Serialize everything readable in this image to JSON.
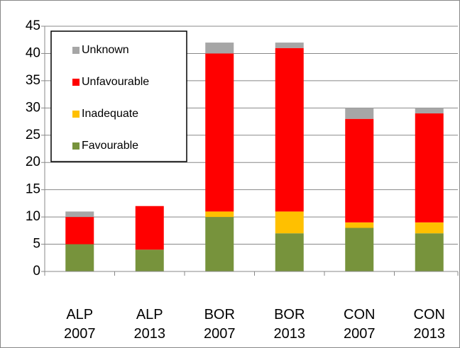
{
  "chart_data": {
    "type": "stacked_bar",
    "categories": [
      "ALP 2007",
      "ALP 2013",
      "BOR 2007",
      "BOR 2013",
      "CON 2007",
      "CON 2013"
    ],
    "series": [
      {
        "name": "Favourable",
        "color": "#77933c",
        "values": [
          5,
          4,
          10,
          7,
          8,
          7
        ]
      },
      {
        "name": "Inadequate",
        "color": "#ffc000",
        "values": [
          0,
          0,
          1,
          4,
          1,
          2
        ]
      },
      {
        "name": "Unfavourable",
        "color": "#ff0000",
        "values": [
          5,
          8,
          29,
          30,
          19,
          20
        ]
      },
      {
        "name": "Unknown",
        "color": "#a6a6a6",
        "values": [
          1,
          0,
          2,
          1,
          2,
          1
        ]
      }
    ],
    "ylim": [
      0,
      45
    ],
    "yticks": [
      0,
      5,
      10,
      15,
      20,
      25,
      30,
      35,
      40,
      45
    ],
    "grid": true,
    "legend": "upper left"
  }
}
